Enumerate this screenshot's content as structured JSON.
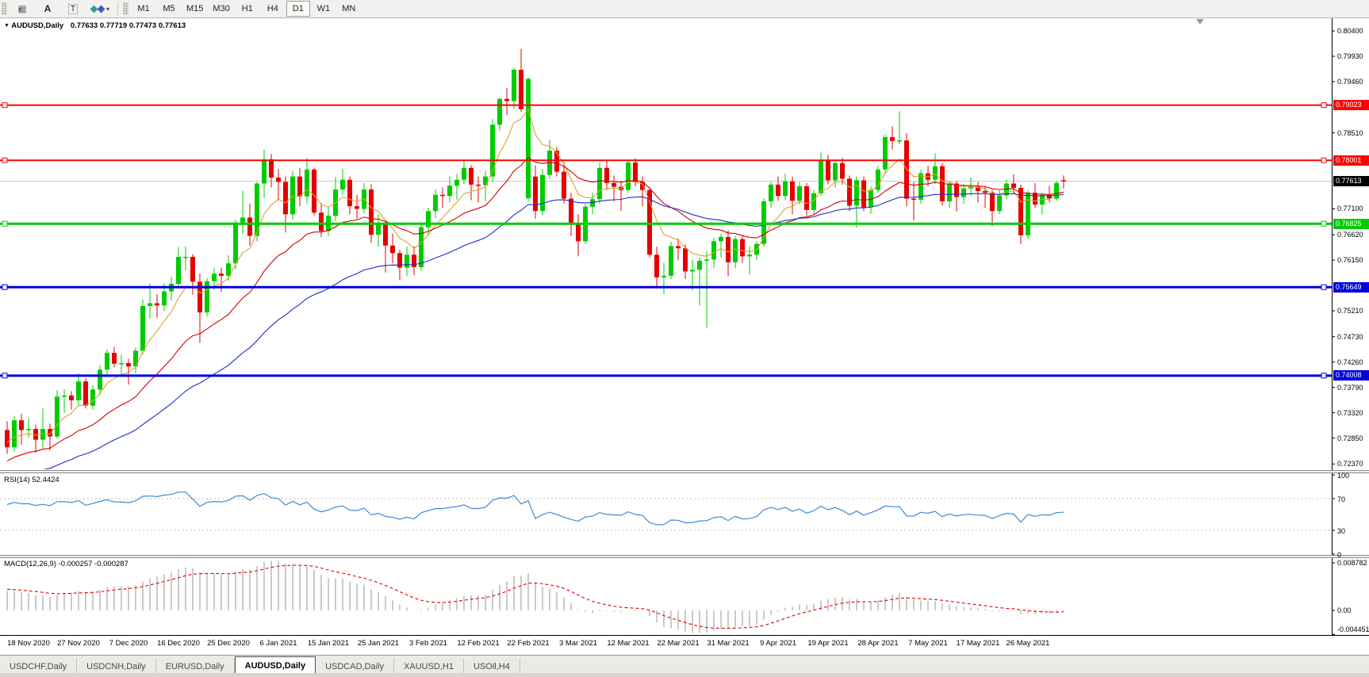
{
  "toolbar": {
    "tool_icons": [
      {
        "name": "data-window-icon",
        "glyph": "gridf"
      },
      {
        "name": "font-icon",
        "glyph": "A"
      },
      {
        "name": "text-object-icon",
        "glyph": "T"
      },
      {
        "name": "shapes-dropdown-icon",
        "glyph": "diamonds"
      }
    ],
    "timeframes": [
      {
        "label": "M1",
        "active": false
      },
      {
        "label": "M5",
        "active": false
      },
      {
        "label": "M15",
        "active": false
      },
      {
        "label": "M30",
        "active": false
      },
      {
        "label": "H1",
        "active": false
      },
      {
        "label": "H4",
        "active": false
      },
      {
        "label": "D1",
        "active": true
      },
      {
        "label": "W1",
        "active": false
      },
      {
        "label": "MN",
        "active": false
      }
    ]
  },
  "title": {
    "symbol_period": "AUDUSD,Daily",
    "ohlc": "0.77633 0.77719 0.77473 0.77613",
    "collapse_glyph": "▼"
  },
  "price_axis": {
    "ticks": [
      {
        "label": "0.80400",
        "value": 0.804
      },
      {
        "label": "0.79930",
        "value": 0.7993
      },
      {
        "label": "0.79460",
        "value": 0.7946
      },
      {
        "label": "0.78510",
        "value": 0.7851
      },
      {
        "label": "0.77100",
        "value": 0.771
      },
      {
        "label": "0.76620",
        "value": 0.7662
      },
      {
        "label": "0.76150",
        "value": 0.7615
      },
      {
        "label": "0.75210",
        "value": 0.7521
      },
      {
        "label": "0.74730",
        "value": 0.7473
      },
      {
        "label": "0.74260",
        "value": 0.7426
      },
      {
        "label": "0.73790",
        "value": 0.7379
      },
      {
        "label": "0.73320",
        "value": 0.7332
      },
      {
        "label": "0.72850",
        "value": 0.7285
      },
      {
        "label": "0.72370",
        "value": 0.7237
      }
    ]
  },
  "hlines": [
    {
      "label": "0.79023",
      "price": 0.79023,
      "color": "#ff0000",
      "width": 2
    },
    {
      "label": "0.78001",
      "price": 0.78001,
      "color": "#ff0000",
      "width": 2
    },
    {
      "label": "0.76825",
      "price": 0.76825,
      "color": "#00cc00",
      "width": 3
    },
    {
      "label": "0.75649",
      "price": 0.75649,
      "color": "#0000e0",
      "width": 3
    },
    {
      "label": "0.74008",
      "price": 0.74008,
      "color": "#0000e0",
      "width": 3
    }
  ],
  "current_price": {
    "label": "0.77613",
    "value": 0.77613,
    "line_color": "#c8c8c8",
    "tag_bg": "#000000"
  },
  "time_axis": {
    "ticks": [
      {
        "label": "18 Nov 2020",
        "index": 3
      },
      {
        "label": "27 Nov 2020",
        "index": 10
      },
      {
        "label": "7 Dec 2020",
        "index": 17
      },
      {
        "label": "16 Dec 2020",
        "index": 24
      },
      {
        "label": "25 Dec 2020",
        "index": 31
      },
      {
        "label": "6 Jan 2021",
        "index": 38
      },
      {
        "label": "15 Jan 2021",
        "index": 45
      },
      {
        "label": "25 Jan 2021",
        "index": 52
      },
      {
        "label": "3 Feb 2021",
        "index": 59
      },
      {
        "label": "12 Feb 2021",
        "index": 66
      },
      {
        "label": "22 Feb 2021",
        "index": 73
      },
      {
        "label": "3 Mar 2021",
        "index": 80
      },
      {
        "label": "12 Mar 2021",
        "index": 87
      },
      {
        "label": "22 Mar 2021",
        "index": 94
      },
      {
        "label": "31 Mar 2021",
        "index": 101
      },
      {
        "label": "9 Apr 2021",
        "index": 108
      },
      {
        "label": "19 Apr 2021",
        "index": 115
      },
      {
        "label": "28 Apr 2021",
        "index": 122
      },
      {
        "label": "7 May 2021",
        "index": 129
      },
      {
        "label": "17 May 2021",
        "index": 136
      },
      {
        "label": "26 May 2021",
        "index": 143
      }
    ]
  },
  "rsi": {
    "label": "RSI(14) 52.4424",
    "value": 52.4424,
    "period": 14,
    "axis": [
      {
        "label": "100",
        "value": 100
      },
      {
        "label": "70",
        "value": 70
      },
      {
        "label": "30",
        "value": 30
      },
      {
        "label": "0",
        "value": 0
      }
    ],
    "levels": [
      70,
      30
    ],
    "line_color": "#3d8bd4"
  },
  "macd": {
    "label": "MACD(12,26,9) -0.000257 -0.000287",
    "main_value": -0.000257,
    "signal_value": -0.000287,
    "axis": [
      {
        "label": "0.008782",
        "value": 0.008782
      },
      {
        "label": "0.00",
        "value": 0
      },
      {
        "label": "-0.004451",
        "value": -0.004451
      }
    ],
    "hist_color": "#b4b4b4",
    "signal_color": "#e00000"
  },
  "tabs": [
    {
      "label": "USDCHF,Daily",
      "active": false
    },
    {
      "label": "USDCNH,Daily",
      "active": false
    },
    {
      "label": "EURUSD,Daily",
      "active": false
    },
    {
      "label": "AUDUSD,Daily",
      "active": true
    },
    {
      "label": "USDCAD,Daily",
      "active": false
    },
    {
      "label": "XAUUSD,H1",
      "active": false
    },
    {
      "label": "USOil,H4",
      "active": false
    }
  ],
  "colors": {
    "candle_up": "#00cc00",
    "candle_down": "#e60000",
    "ma_fast": "#e0a12d",
    "ma_mid": "#d40000",
    "ma_slow": "#1f2fc4",
    "background": "#ffffff",
    "axis_text": "#000000",
    "level_dotted": "#bbbbbb"
  },
  "chart_data": {
    "type": "candlestick",
    "symbol": "AUDUSD",
    "timeframe": "Daily",
    "price_range": [
      0.7237,
      0.804
    ],
    "mas": [
      {
        "name": "fast-ma",
        "period": 7,
        "seed": 0.728
      },
      {
        "name": "mid-ma",
        "period": 21,
        "seed": 0.724
      },
      {
        "name": "slow-ma",
        "period": 45,
        "seed": 0.7205
      }
    ],
    "candles": [
      [
        0.73,
        0.7316,
        0.7256,
        0.7268
      ],
      [
        0.7268,
        0.7326,
        0.726,
        0.7318
      ],
      [
        0.7318,
        0.733,
        0.7272,
        0.73
      ],
      [
        0.73,
        0.7322,
        0.7286,
        0.7302
      ],
      [
        0.7302,
        0.731,
        0.7258,
        0.7282
      ],
      [
        0.7282,
        0.734,
        0.7266,
        0.7302
      ],
      [
        0.7302,
        0.7312,
        0.7262,
        0.7288
      ],
      [
        0.7288,
        0.7374,
        0.7284,
        0.7362
      ],
      [
        0.7362,
        0.7376,
        0.7332,
        0.7364
      ],
      [
        0.7364,
        0.7372,
        0.7338,
        0.7355
      ],
      [
        0.7355,
        0.7405,
        0.7345,
        0.739
      ],
      [
        0.739,
        0.7396,
        0.734,
        0.7345
      ],
      [
        0.7345,
        0.7383,
        0.7338,
        0.7375
      ],
      [
        0.7375,
        0.742,
        0.7365,
        0.7412
      ],
      [
        0.7412,
        0.745,
        0.74,
        0.7443
      ],
      [
        0.7443,
        0.7454,
        0.7416,
        0.7423
      ],
      [
        0.7423,
        0.744,
        0.74,
        0.7424
      ],
      [
        0.7424,
        0.7432,
        0.7384,
        0.7418
      ],
      [
        0.7418,
        0.7453,
        0.7405,
        0.7447
      ],
      [
        0.7447,
        0.7542,
        0.744,
        0.753
      ],
      [
        0.753,
        0.7572,
        0.7506,
        0.7535
      ],
      [
        0.7535,
        0.7552,
        0.7508,
        0.7531
      ],
      [
        0.7531,
        0.7572,
        0.752,
        0.7557
      ],
      [
        0.7557,
        0.7584,
        0.754,
        0.7571
      ],
      [
        0.7571,
        0.7639,
        0.7563,
        0.7621
      ],
      [
        0.7621,
        0.764,
        0.7596,
        0.7621
      ],
      [
        0.7621,
        0.7626,
        0.7551,
        0.7575
      ],
      [
        0.7575,
        0.759,
        0.7462,
        0.7518
      ],
      [
        0.7518,
        0.7582,
        0.751,
        0.7576
      ],
      [
        0.7576,
        0.76,
        0.756,
        0.759
      ],
      [
        0.759,
        0.7601,
        0.7556,
        0.7586
      ],
      [
        0.7586,
        0.7624,
        0.7576,
        0.7609
      ],
      [
        0.7609,
        0.769,
        0.7598,
        0.7685
      ],
      [
        0.7685,
        0.7743,
        0.7664,
        0.7694
      ],
      [
        0.7694,
        0.772,
        0.7642,
        0.766
      ],
      [
        0.766,
        0.776,
        0.765,
        0.7757
      ],
      [
        0.7757,
        0.782,
        0.773,
        0.7802
      ],
      [
        0.7802,
        0.7812,
        0.775,
        0.7768
      ],
      [
        0.7768,
        0.7784,
        0.7726,
        0.776
      ],
      [
        0.776,
        0.777,
        0.7666,
        0.77
      ],
      [
        0.77,
        0.778,
        0.769,
        0.777
      ],
      [
        0.777,
        0.7786,
        0.7715,
        0.7733
      ],
      [
        0.7733,
        0.7805,
        0.772,
        0.7783
      ],
      [
        0.7783,
        0.7786,
        0.7698,
        0.7703
      ],
      [
        0.7703,
        0.7721,
        0.7658,
        0.7669
      ],
      [
        0.7669,
        0.7714,
        0.7659,
        0.7697
      ],
      [
        0.7697,
        0.7769,
        0.7688,
        0.7746
      ],
      [
        0.7746,
        0.7784,
        0.7736,
        0.7764
      ],
      [
        0.7764,
        0.777,
        0.77,
        0.7715
      ],
      [
        0.7715,
        0.7736,
        0.7692,
        0.771
      ],
      [
        0.771,
        0.7758,
        0.7702,
        0.7746
      ],
      [
        0.7746,
        0.7756,
        0.7647,
        0.7662
      ],
      [
        0.7662,
        0.77,
        0.764,
        0.7684
      ],
      [
        0.7684,
        0.769,
        0.7592,
        0.7642
      ],
      [
        0.7642,
        0.7664,
        0.7609,
        0.7628
      ],
      [
        0.7628,
        0.7634,
        0.7578,
        0.7601
      ],
      [
        0.7601,
        0.764,
        0.7585,
        0.7625
      ],
      [
        0.7625,
        0.7641,
        0.7587,
        0.7602
      ],
      [
        0.7602,
        0.7682,
        0.7595,
        0.7676
      ],
      [
        0.7676,
        0.7712,
        0.766,
        0.7706
      ],
      [
        0.7706,
        0.7746,
        0.7693,
        0.7736
      ],
      [
        0.7736,
        0.775,
        0.7712,
        0.7734
      ],
      [
        0.7734,
        0.777,
        0.7722,
        0.7753
      ],
      [
        0.7753,
        0.7775,
        0.7727,
        0.7764
      ],
      [
        0.7764,
        0.78,
        0.7756,
        0.7786
      ],
      [
        0.7786,
        0.7791,
        0.7726,
        0.7755
      ],
      [
        0.7755,
        0.777,
        0.7722,
        0.7754
      ],
      [
        0.7754,
        0.778,
        0.7724,
        0.777
      ],
      [
        0.777,
        0.7877,
        0.776,
        0.7866
      ],
      [
        0.7866,
        0.7916,
        0.7855,
        0.7914
      ],
      [
        0.7914,
        0.7934,
        0.7884,
        0.791
      ],
      [
        0.791,
        0.7972,
        0.7896,
        0.7968
      ],
      [
        0.7968,
        0.8007,
        0.789,
        0.7895
      ],
      [
        0.773,
        0.7955,
        0.7724,
        0.7951
      ],
      [
        0.777,
        0.7791,
        0.7692,
        0.7706
      ],
      [
        0.7706,
        0.7784,
        0.7698,
        0.7773
      ],
      [
        0.7773,
        0.7838,
        0.7765,
        0.7818
      ],
      [
        0.7818,
        0.7825,
        0.777,
        0.7779
      ],
      [
        0.7779,
        0.7797,
        0.772,
        0.7729
      ],
      [
        0.7729,
        0.774,
        0.766,
        0.7684
      ],
      [
        0.7684,
        0.77,
        0.7622,
        0.765
      ],
      [
        0.765,
        0.772,
        0.7645,
        0.7714
      ],
      [
        0.7714,
        0.774,
        0.77,
        0.7728
      ],
      [
        0.7728,
        0.7795,
        0.772,
        0.7786
      ],
      [
        0.7786,
        0.78,
        0.7745,
        0.7758
      ],
      [
        0.7758,
        0.7772,
        0.7724,
        0.7751
      ],
      [
        0.7751,
        0.7762,
        0.7706,
        0.7745
      ],
      [
        0.7745,
        0.78,
        0.774,
        0.7796
      ],
      [
        0.7796,
        0.7804,
        0.7752,
        0.776
      ],
      [
        0.776,
        0.777,
        0.7715,
        0.7745
      ],
      [
        0.7745,
        0.775,
        0.762,
        0.7625
      ],
      [
        0.7625,
        0.764,
        0.7562,
        0.7583
      ],
      [
        0.7583,
        0.761,
        0.7552,
        0.7586
      ],
      [
        0.7586,
        0.7649,
        0.758,
        0.7641
      ],
      [
        0.7641,
        0.7655,
        0.7615,
        0.7637
      ],
      [
        0.7637,
        0.7644,
        0.758,
        0.7594
      ],
      [
        0.7594,
        0.7616,
        0.7559,
        0.7597
      ],
      [
        0.7597,
        0.762,
        0.7531,
        0.7614
      ],
      [
        0.7614,
        0.7632,
        0.749,
        0.7616
      ],
      [
        0.7616,
        0.7656,
        0.76,
        0.765
      ],
      [
        0.765,
        0.7664,
        0.762,
        0.7658
      ],
      [
        0.7658,
        0.767,
        0.7585,
        0.7611
      ],
      [
        0.7611,
        0.766,
        0.76,
        0.7654
      ],
      [
        0.7654,
        0.766,
        0.761,
        0.7622
      ],
      [
        0.7622,
        0.764,
        0.7588,
        0.7625
      ],
      [
        0.7625,
        0.765,
        0.7615,
        0.7645
      ],
      [
        0.7645,
        0.773,
        0.764,
        0.7724
      ],
      [
        0.7724,
        0.776,
        0.7712,
        0.7755
      ],
      [
        0.7755,
        0.777,
        0.7725,
        0.7734
      ],
      [
        0.7734,
        0.7775,
        0.7726,
        0.7761
      ],
      [
        0.7761,
        0.777,
        0.77,
        0.7725
      ],
      [
        0.7725,
        0.776,
        0.7718,
        0.7752
      ],
      [
        0.7752,
        0.7758,
        0.7697,
        0.7708
      ],
      [
        0.7708,
        0.7745,
        0.77,
        0.7739
      ],
      [
        0.7739,
        0.7815,
        0.7734,
        0.78
      ],
      [
        0.78,
        0.781,
        0.7755,
        0.7763
      ],
      [
        0.7763,
        0.78,
        0.775,
        0.7795
      ],
      [
        0.7795,
        0.7805,
        0.7755,
        0.7766
      ],
      [
        0.7766,
        0.7772,
        0.7706,
        0.7716
      ],
      [
        0.7716,
        0.777,
        0.7675,
        0.7763
      ],
      [
        0.7763,
        0.777,
        0.7706,
        0.7713
      ],
      [
        0.7713,
        0.7752,
        0.7701,
        0.7745
      ],
      [
        0.7745,
        0.779,
        0.774,
        0.7783
      ],
      [
        0.7783,
        0.7848,
        0.7776,
        0.7843
      ],
      [
        0.7843,
        0.7863,
        0.782,
        0.7836
      ],
      [
        0.7836,
        0.7891,
        0.783,
        0.7837
      ],
      [
        0.7837,
        0.785,
        0.7715,
        0.7729
      ],
      [
        0.7729,
        0.776,
        0.7688,
        0.7727
      ],
      [
        0.7727,
        0.7782,
        0.772,
        0.7776
      ],
      [
        0.7776,
        0.779,
        0.7752,
        0.7764
      ],
      [
        0.7764,
        0.7813,
        0.7756,
        0.7789
      ],
      [
        0.7789,
        0.7795,
        0.7716,
        0.7724
      ],
      [
        0.7724,
        0.776,
        0.7712,
        0.7757
      ],
      [
        0.7757,
        0.7762,
        0.7705,
        0.7732
      ],
      [
        0.7732,
        0.7756,
        0.772,
        0.7748
      ],
      [
        0.7748,
        0.7768,
        0.7734,
        0.7751
      ],
      [
        0.7751,
        0.776,
        0.7722,
        0.7743
      ],
      [
        0.7743,
        0.7752,
        0.7712,
        0.774
      ],
      [
        0.774,
        0.7745,
        0.7678,
        0.7706
      ],
      [
        0.7706,
        0.7744,
        0.77,
        0.7735
      ],
      [
        0.7735,
        0.7764,
        0.7728,
        0.7757
      ],
      [
        0.7757,
        0.7774,
        0.7738,
        0.7749
      ],
      [
        0.7749,
        0.7755,
        0.7645,
        0.7661
      ],
      [
        0.7661,
        0.7745,
        0.7655,
        0.774
      ],
      [
        0.774,
        0.7758,
        0.7712,
        0.7718
      ],
      [
        0.7718,
        0.774,
        0.77,
        0.7736
      ],
      [
        0.7736,
        0.7752,
        0.7722,
        0.7729
      ],
      [
        0.7729,
        0.7762,
        0.7725,
        0.7758
      ],
      [
        0.77633,
        0.77719,
        0.77473,
        0.77613
      ]
    ]
  }
}
